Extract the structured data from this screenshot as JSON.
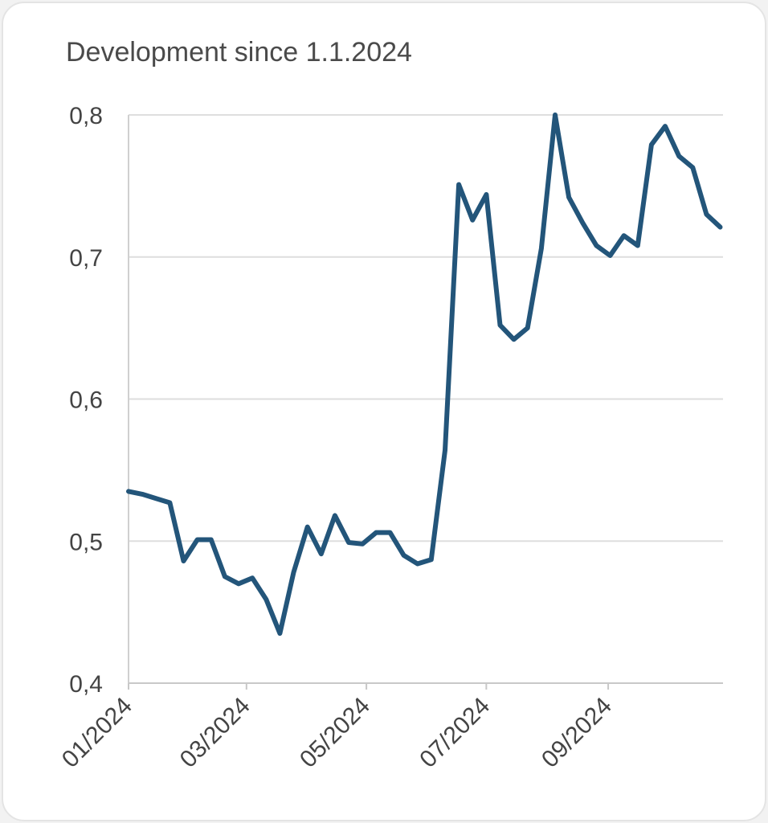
{
  "chart_data": {
    "type": "line",
    "title": "Development since 1.1.2024",
    "xlabel": "",
    "ylabel": "",
    "ylim": [
      0.4,
      0.8
    ],
    "yticks": [
      0.4,
      0.5,
      0.6,
      0.7,
      0.8
    ],
    "ytick_labels": [
      "0,4",
      "0,5",
      "0,6",
      "0,7",
      "0,8"
    ],
    "xticks": [
      "2024-01-01",
      "2024-03-01",
      "2024-05-01",
      "2024-07-01",
      "2024-09-01"
    ],
    "xtick_labels": [
      "01/2024",
      "03/2024",
      "05/2024",
      "07/2024",
      "09/2024"
    ],
    "grid": "horizontal",
    "line_color": "#23557a",
    "x": [
      "2024-01-01",
      "2024-01-08",
      "2024-01-15",
      "2024-01-22",
      "2024-01-29",
      "2024-02-05",
      "2024-02-12",
      "2024-02-19",
      "2024-02-26",
      "2024-03-04",
      "2024-03-11",
      "2024-03-18",
      "2024-03-25",
      "2024-04-01",
      "2024-04-08",
      "2024-04-15",
      "2024-04-22",
      "2024-04-29",
      "2024-05-06",
      "2024-05-13",
      "2024-05-20",
      "2024-05-27",
      "2024-06-03",
      "2024-06-10",
      "2024-06-17",
      "2024-06-24",
      "2024-07-01",
      "2024-07-08",
      "2024-07-15",
      "2024-07-22",
      "2024-07-29",
      "2024-08-05",
      "2024-08-12",
      "2024-08-19",
      "2024-08-26",
      "2024-09-02",
      "2024-09-09",
      "2024-09-16",
      "2024-09-23",
      "2024-09-30",
      "2024-10-07",
      "2024-10-14",
      "2024-10-21",
      "2024-10-28"
    ],
    "values": [
      0.535,
      0.533,
      0.53,
      0.527,
      0.486,
      0.501,
      0.501,
      0.475,
      0.47,
      0.474,
      0.459,
      0.435,
      0.478,
      0.51,
      0.491,
      0.518,
      0.499,
      0.498,
      0.506,
      0.506,
      0.49,
      0.484,
      0.487,
      0.564,
      0.751,
      0.726,
      0.744,
      0.652,
      0.642,
      0.65,
      0.706,
      0.8,
      0.742,
      0.724,
      0.708,
      0.701,
      0.715,
      0.708,
      0.779,
      0.792,
      0.771,
      0.763,
      0.73,
      0.721
    ]
  }
}
